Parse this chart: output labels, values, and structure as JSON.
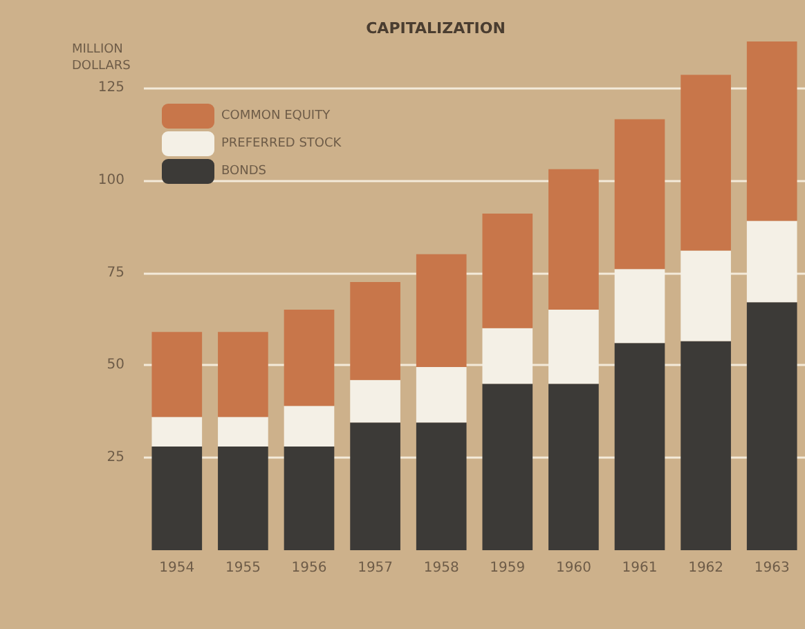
{
  "chart_data": {
    "type": "bar",
    "title": "CAPITALIZATION",
    "ylabel": "MILLION\nDOLLARS",
    "categories": [
      "1954",
      "1955",
      "1956",
      "1957",
      "1958",
      "1959",
      "1960",
      "1961",
      "1962",
      "1963"
    ],
    "stacked": true,
    "series": [
      {
        "name": "BONDS",
        "color": "#3c3a37",
        "values": [
          28,
          28,
          28,
          34.5,
          34.5,
          45,
          45,
          56,
          56.5,
          67
        ]
      },
      {
        "name": "PREFERRED STOCK",
        "color": "#f4f0e6",
        "values": [
          8,
          8,
          11,
          11.5,
          15,
          15,
          20,
          20,
          24.5,
          22
        ]
      },
      {
        "name": "COMMON EQUITY",
        "color": "#c8764a",
        "values": [
          23,
          23,
          26,
          26.5,
          30.5,
          31,
          38,
          40.5,
          47.5,
          48.5
        ]
      }
    ],
    "ylim": [
      0,
      137.5
    ],
    "yticks": [
      25,
      50,
      75,
      100,
      125
    ],
    "grid": "y",
    "legend": "top left"
  }
}
